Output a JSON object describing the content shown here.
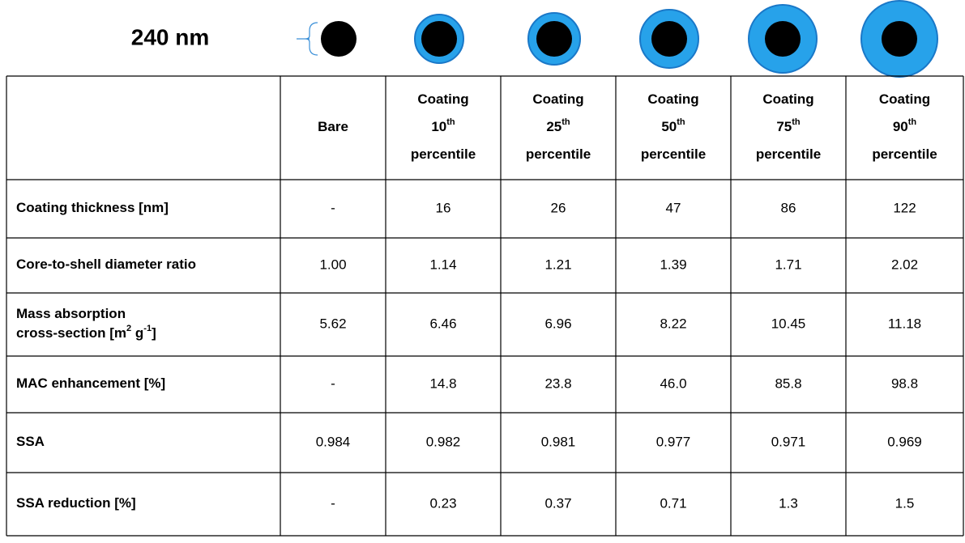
{
  "header": {
    "label": "240 nm"
  },
  "table": {
    "columns": [
      {
        "lines": [
          []
        ]
      },
      {
        "lines": [
          [
            {
              "text": "Bare"
            }
          ]
        ]
      },
      {
        "lines": [
          [
            {
              "text": "Coating"
            }
          ],
          [
            {
              "text": "10"
            },
            {
              "text": "th",
              "sup": true
            }
          ],
          [
            {
              "text": "percentile"
            }
          ]
        ]
      },
      {
        "lines": [
          [
            {
              "text": "Coating"
            }
          ],
          [
            {
              "text": "25"
            },
            {
              "text": "th",
              "sup": true
            }
          ],
          [
            {
              "text": "percentile"
            }
          ]
        ]
      },
      {
        "lines": [
          [
            {
              "text": "Coating"
            }
          ],
          [
            {
              "text": "50"
            },
            {
              "text": "th",
              "sup": true
            }
          ],
          [
            {
              "text": "percentile"
            }
          ]
        ]
      },
      {
        "lines": [
          [
            {
              "text": "Coating"
            }
          ],
          [
            {
              "text": "75"
            },
            {
              "text": "th",
              "sup": true
            }
          ],
          [
            {
              "text": "percentile"
            }
          ]
        ]
      },
      {
        "lines": [
          [
            {
              "text": "Coating"
            }
          ],
          [
            {
              "text": "90"
            },
            {
              "text": "th",
              "sup": true
            }
          ],
          [
            {
              "text": "percentile"
            }
          ]
        ]
      }
    ],
    "rows": [
      {
        "label": [
          [
            {
              "text": "Coating thickness [nm]"
            }
          ]
        ],
        "cells": [
          "-",
          "16",
          "26",
          "47",
          "86",
          "122"
        ]
      },
      {
        "label": [
          [
            {
              "text": "Core-to-shell diameter ratio"
            }
          ]
        ],
        "cells": [
          "1.00",
          "1.14",
          "1.21",
          "1.39",
          "1.71",
          "2.02"
        ]
      },
      {
        "label": [
          [
            {
              "text": "Mass absorption"
            }
          ],
          [
            {
              "text": "cross-section [m"
            },
            {
              "text": "2",
              "sup": true
            },
            {
              "text": " g"
            },
            {
              "text": "-1",
              "sup": true
            },
            {
              "text": "]"
            }
          ]
        ],
        "cells": [
          "5.62",
          "6.46",
          "6.96",
          "8.22",
          "10.45",
          "11.18"
        ]
      },
      {
        "label": [
          [
            {
              "text": "MAC enhancement [%]"
            }
          ]
        ],
        "cells": [
          "-",
          "14.8",
          "23.8",
          "46.0",
          "85.8",
          "98.8"
        ]
      },
      {
        "label": [
          [
            {
              "text": "SSA"
            }
          ]
        ],
        "cells": [
          "0.984",
          "0.982",
          "0.981",
          "0.977",
          "0.971",
          "0.969"
        ]
      },
      {
        "label": [
          [
            {
              "text": "SSA reduction [%]"
            }
          ]
        ],
        "cells": [
          "-",
          "0.23",
          "0.37",
          "0.71",
          "1.3",
          "1.5"
        ]
      }
    ]
  }
}
